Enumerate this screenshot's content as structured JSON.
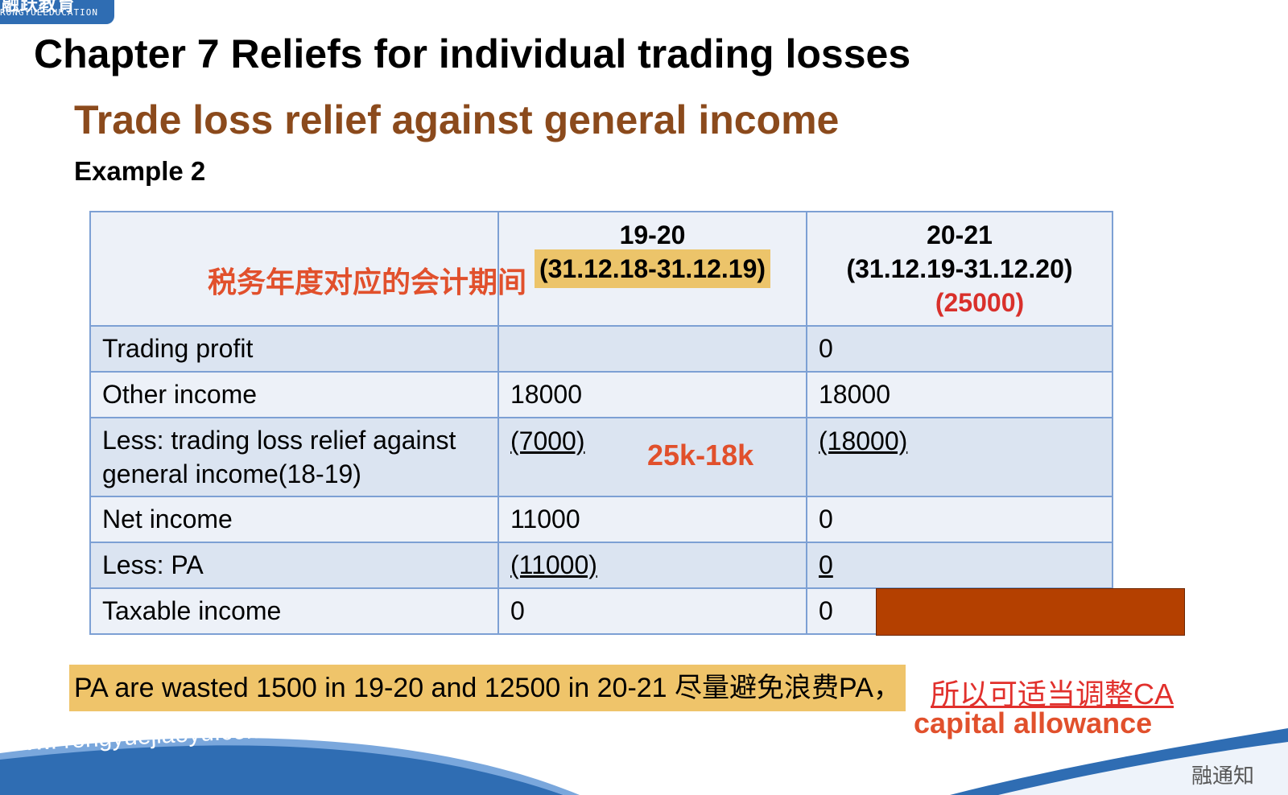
{
  "logo": {
    "brand_cn": "融跃教育",
    "brand_en": "RONGYUEEDUCATION"
  },
  "chapter_title": "Chapter 7 Reliefs for individual trading losses",
  "section_title": "Trade loss relief against general income",
  "example_label": "Example 2",
  "annotations": {
    "cn_period_label": "税务年度对应的会计期间",
    "calc_note": "25k-18k"
  },
  "table": {
    "header": {
      "col2_year": "19-20",
      "col2_period": "(31.12.18-31.12.19)",
      "col3_year": "20-21",
      "col3_period": "(31.12.19-31.12.20)",
      "col3_loss": "(25000)"
    },
    "rows": [
      {
        "label": "Trading profit",
        "v1": "",
        "v2": "0"
      },
      {
        "label": "Other income",
        "v1": "18000",
        "v2": "18000"
      },
      {
        "label_line1": "Less: trading loss relief against",
        "label_line2": "general income(18-19)",
        "v1": "(7000)",
        "v2": "(18000)"
      },
      {
        "label": "Net income",
        "v1": "11000",
        "v2": "0"
      },
      {
        "label": "Less: PA",
        "v1": "(11000)",
        "v2": "0"
      },
      {
        "label": "Taxable income",
        "v1": "0",
        "v2": "0"
      }
    ]
  },
  "footer_notes": {
    "pa_note": "PA are wasted 1500 in 19-20 and 12500 in 20-21 尽量避免浪费PA，",
    "ca_link": "所以可适当调整CA",
    "ca_label": "capital allowance"
  },
  "footer": {
    "website": "www. rongyuejiaoyu.com",
    "corner_text": "融通知"
  },
  "colors": {
    "accent_blue": "#2f6db3",
    "section_brown": "#8b4a1c",
    "highlight_yellow": "#efc46a",
    "note_orange": "#e1502c",
    "redact": "#b44000"
  }
}
